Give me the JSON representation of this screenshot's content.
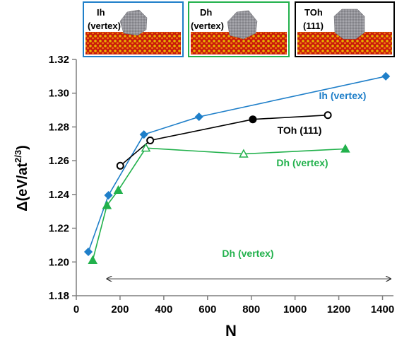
{
  "chart_data": {
    "type": "line",
    "xlabel": "N",
    "ylabel": "Δ(eV/at",
    "ylabel_sup": "2/3",
    "ylabel_close": ")",
    "xlim": [
      0,
      1450
    ],
    "ylim": [
      1.18,
      1.32
    ],
    "xticks": [
      0,
      200,
      400,
      600,
      800,
      1000,
      1200,
      1400
    ],
    "yticks": [
      "1.18",
      "1.20",
      "1.22",
      "1.24",
      "1.26",
      "1.28",
      "1.30",
      "1.32"
    ],
    "grid": false,
    "series": [
      {
        "name": "Ih (vertex)",
        "color": "#1f7fc9",
        "marker": "diamond",
        "points": [
          {
            "x": 55,
            "y": 1.206,
            "filled": true
          },
          {
            "x": 147,
            "y": 1.2395,
            "filled": true
          },
          {
            "x": 309,
            "y": 1.2755,
            "filled": true
          },
          {
            "x": 561,
            "y": 1.286,
            "filled": true
          },
          {
            "x": 1415,
            "y": 1.31,
            "filled": true
          }
        ]
      },
      {
        "name": "TOh (111)",
        "color": "#000000",
        "marker": "circle",
        "points": [
          {
            "x": 201,
            "y": 1.257,
            "filled": false
          },
          {
            "x": 338,
            "y": 1.272,
            "filled": false
          },
          {
            "x": 807,
            "y": 1.2845,
            "filled": true
          },
          {
            "x": 1150,
            "y": 1.287,
            "filled": false
          }
        ]
      },
      {
        "name": "Dh (vertex)",
        "color": "#22b14c",
        "marker": "triangle",
        "points": [
          {
            "x": 75,
            "y": 1.201,
            "filled": true
          },
          {
            "x": 140,
            "y": 1.2335,
            "filled": true
          },
          {
            "x": 192,
            "y": 1.2425,
            "filled": true
          },
          {
            "x": 318,
            "y": 1.2675,
            "filled": false
          },
          {
            "x": 765,
            "y": 1.264,
            "filled": false
          },
          {
            "x": 1230,
            "y": 1.267,
            "filled": true
          }
        ]
      }
    ],
    "annotations": [
      {
        "text": "Ih (vertex)",
        "color": "#1f7fc9"
      },
      {
        "text": "TOh (111)",
        "color": "#000000"
      },
      {
        "text": "Dh (vertex)",
        "color": "#22b14c"
      },
      {
        "text": "Dh (vertex)",
        "color": "#22b14c"
      }
    ],
    "range_arrow": {
      "x_from": 140,
      "x_to": 1450,
      "y": 1.19
    }
  },
  "insets": [
    {
      "line1": "Ih",
      "line2": "(vertex)",
      "border": "#1f7fc9",
      "text_color": "#1f7fc9"
    },
    {
      "line1": "Dh",
      "line2": "(vertex)",
      "border": "#22b14c",
      "text_color": "#22b14c"
    },
    {
      "line1": "TOh",
      "line2": "(111)",
      "border": "#000000",
      "text_color": "#000000"
    }
  ]
}
